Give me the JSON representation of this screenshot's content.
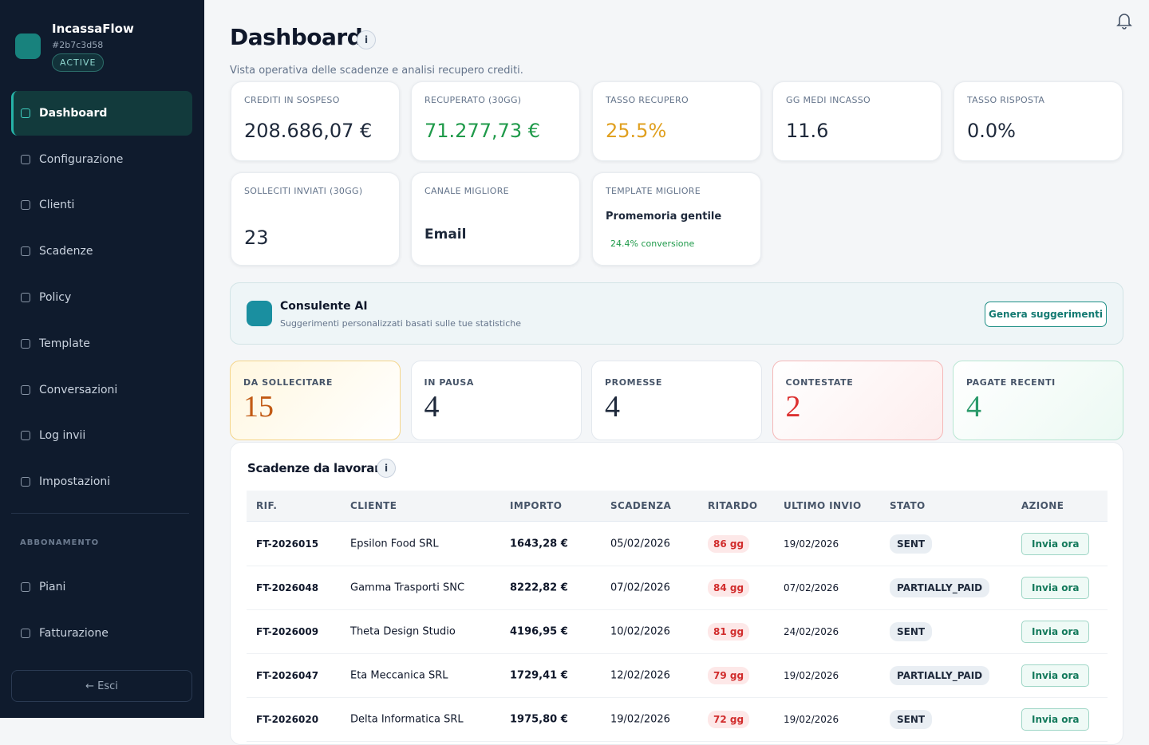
{
  "sidebar": {
    "brand": "IncassaFlow",
    "account_id": "#2b7c3d58",
    "status": "ACTIVE",
    "nav": [
      "Dashboard",
      "Configurazione",
      "Clienti",
      "Scadenze",
      "Policy",
      "Template",
      "Conversazioni",
      "Log invii",
      "Impostazioni"
    ],
    "section": "ABBONAMENTO",
    "sub_nav": [
      "Piani",
      "Fatturazione"
    ],
    "logout": "← Esci"
  },
  "header": {
    "title": "Dashboard",
    "info": "i",
    "subtitle": "Vista operativa delle scadenze e analisi recupero crediti."
  },
  "kpis": [
    {
      "label": "CREDITI IN SOSPESO",
      "value": "208.686,07 €"
    },
    {
      "label": "RECUPERATO (30GG)",
      "value": "71.277,73 €"
    },
    {
      "label": "TASSO RECUPERO",
      "value": "25.5%"
    },
    {
      "label": "GG MEDI INCASSO",
      "value": "11.6"
    },
    {
      "label": "TASSO RISPOSTA",
      "value": "0.0%"
    },
    {
      "label": "SOLLECITI INVIATI (30GG)",
      "value": "23"
    },
    {
      "label": "CANALE MIGLIORE",
      "value": "Email"
    },
    {
      "label": "TEMPLATE MIGLIORE",
      "value": "Promemoria gentile",
      "detail": "24.4% conversione"
    }
  ],
  "advisor": {
    "title": "Consulente AI",
    "subtitle": "Suggerimenti personalizzati basati sulle tue statistiche",
    "button": "Genera suggerimenti"
  },
  "status_cards": [
    {
      "label": "DA SOLLECITARE",
      "value": 15
    },
    {
      "label": "IN PAUSA",
      "value": 4
    },
    {
      "label": "PROMESSE",
      "value": 4
    },
    {
      "label": "CONTESTATE",
      "value": 2
    },
    {
      "label": "PAGATE RECENTI",
      "value": 4
    }
  ],
  "table": {
    "title": "Scadenze da lavorare",
    "info": "i",
    "columns": [
      "RIF.",
      "CLIENTE",
      "IMPORTO",
      "SCADENZA",
      "RITARDO",
      "ULTIMO INVIO",
      "STATO",
      "AZIONE"
    ],
    "rows": [
      [
        "FT-2026015",
        "Epsilon Food SRL",
        "1643,28 €",
        "05/02/2026",
        "86 gg",
        "19/02/2026",
        "SENT",
        "Invia ora"
      ],
      [
        "FT-2026048",
        "Gamma Trasporti SNC",
        "8222,82 €",
        "07/02/2026",
        "84 gg",
        "07/02/2026",
        "PARTIALLY_PAID",
        "Invia ora"
      ],
      [
        "FT-2026009",
        "Theta Design Studio",
        "4196,95 €",
        "10/02/2026",
        "81 gg",
        "24/02/2026",
        "SENT",
        "Invia ora"
      ],
      [
        "FT-2026047",
        "Eta Meccanica SRL",
        "1729,41 €",
        "12/02/2026",
        "79 gg",
        "19/02/2026",
        "PARTIALLY_PAID",
        "Invia ora"
      ],
      [
        "FT-2026020",
        "Delta Informatica SRL",
        "1975,80 €",
        "19/02/2026",
        "72 gg",
        "19/02/2026",
        "SENT",
        "Invia ora"
      ]
    ]
  }
}
